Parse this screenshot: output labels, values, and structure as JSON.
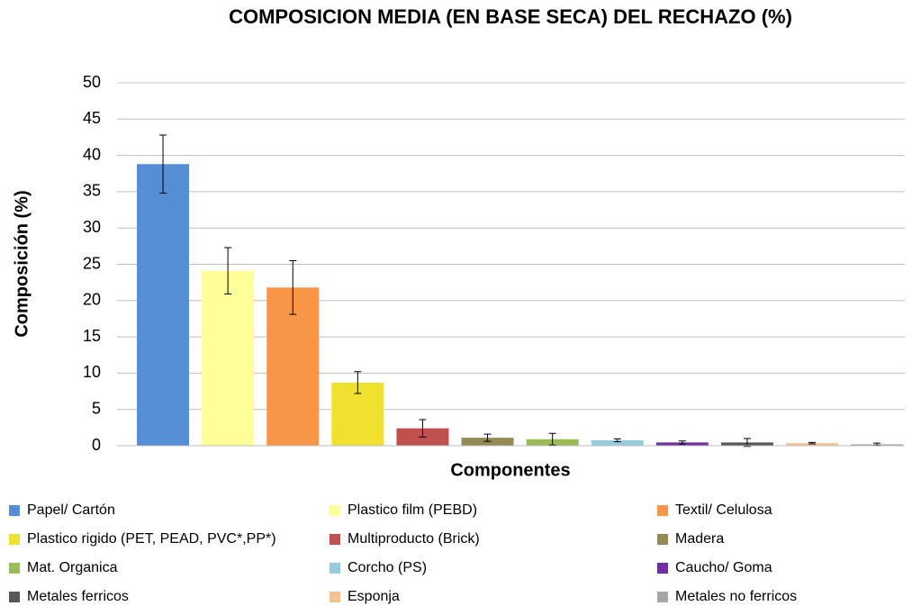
{
  "chart_data": {
    "type": "bar",
    "title": "COMPOSICION MEDIA (EN BASE SECA) DEL RECHAZO (%)",
    "x_label": "Componentes",
    "y_label": "Composición (%)",
    "categories": [
      "Papel/ Cartón",
      "Plastico film (PEBD)",
      "Textil/ Celulosa",
      "Plastico rigido (PET, PEAD, PVC*,PP*)",
      "Multiproducto (Brick)",
      "Madera",
      "Mat. Organica",
      "Corcho (PS)",
      "Caucho/ Goma",
      "Metales ferricos",
      "Esponja",
      "Metales no ferricos"
    ],
    "values": [
      38.8,
      24.1,
      21.8,
      8.7,
      2.4,
      1.1,
      0.9,
      0.75,
      0.45,
      0.45,
      0.35,
      0.2
    ],
    "errors": [
      4.0,
      3.2,
      3.7,
      1.5,
      1.2,
      0.5,
      0.8,
      0.2,
      0.2,
      0.55,
      0.1,
      0.15
    ],
    "colors": [
      "#558ed5",
      "#ffff99",
      "#f79646",
      "#f0e130",
      "#c0504d",
      "#948a54",
      "#9bbb59",
      "#93cddd",
      "#7030a0",
      "#595959",
      "#fac090",
      "#a6a6a6"
    ],
    "ylim": [
      0,
      50
    ],
    "yticks": [
      0,
      5,
      10,
      15,
      20,
      25,
      30,
      35,
      40,
      45,
      50
    ],
    "grid": true,
    "legend": "bottom"
  }
}
